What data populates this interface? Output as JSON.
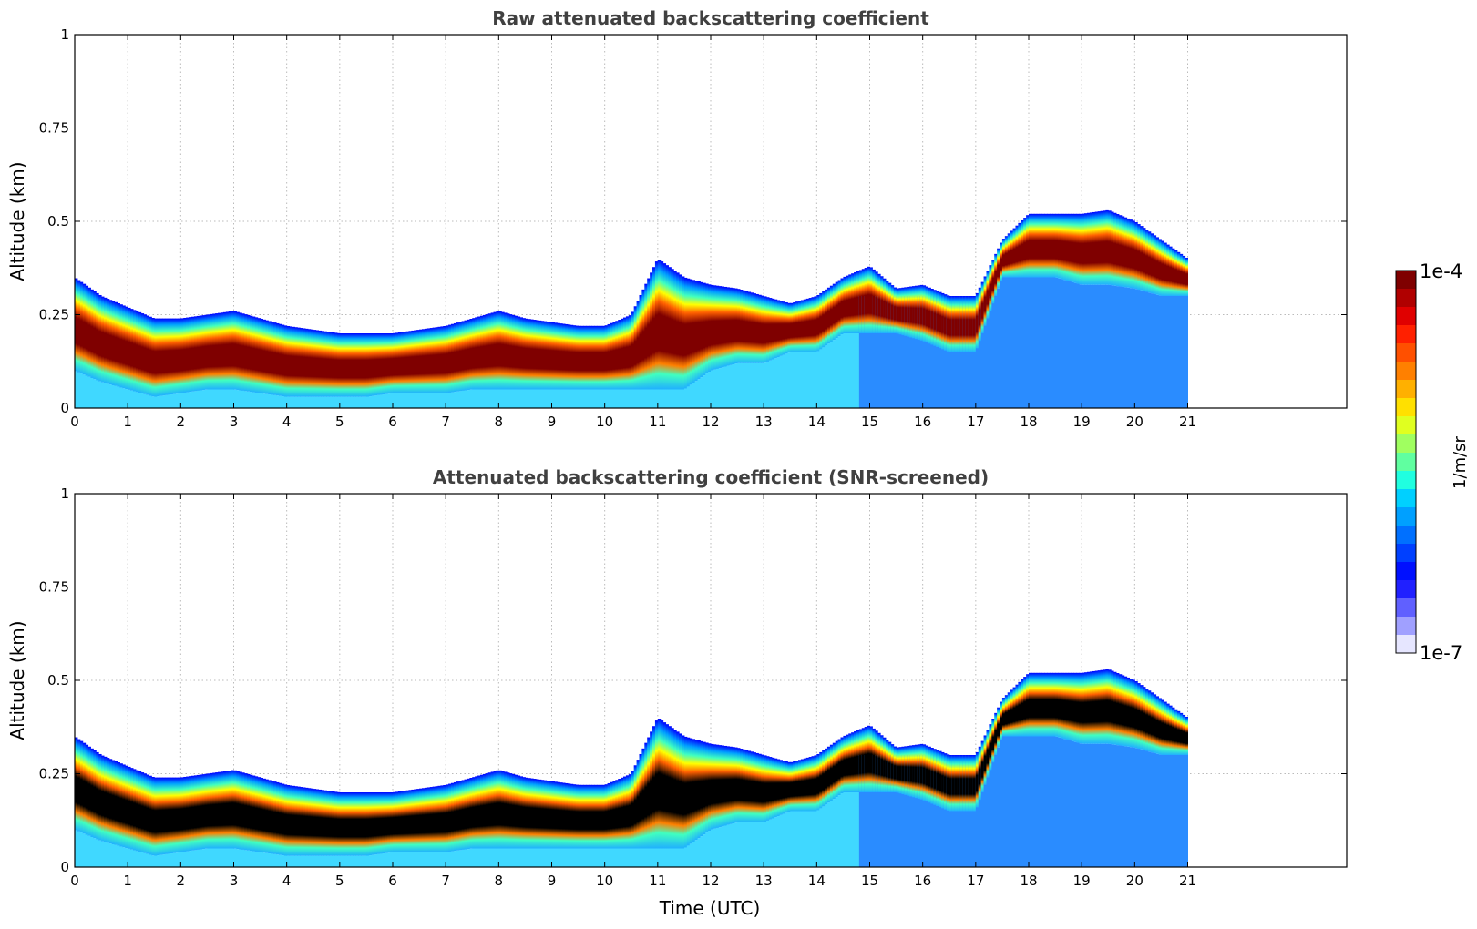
{
  "chart_data": [
    {
      "type": "heatmap",
      "title": "Raw attenuated backscattering coefficient",
      "xlabel": "",
      "ylabel": "Altitude (km)",
      "xlim": [
        0,
        24
      ],
      "ylim": [
        0,
        1
      ],
      "x_ticks": [
        0,
        1,
        2,
        3,
        4,
        5,
        6,
        7,
        8,
        9,
        10,
        11,
        12,
        13,
        14,
        15,
        16,
        17,
        18,
        19,
        20,
        21
      ],
      "x_tick_labels": [
        "0",
        "1",
        "2",
        "3",
        "4",
        "5",
        "6",
        "7",
        "8",
        "9",
        "10",
        "11",
        "12",
        "13",
        "14",
        "15",
        "16",
        "17",
        "18",
        "19",
        "20",
        "21"
      ],
      "y_ticks": [
        0,
        0.25,
        0.5,
        0.75,
        1
      ],
      "y_tick_labels": [
        "0",
        "0.25",
        "0.5",
        "0.75",
        "1"
      ],
      "grid": true,
      "data_x_range": [
        0,
        21
      ],
      "layer_profile": {
        "x": [
          0,
          0.5,
          1,
          1.5,
          2,
          2.5,
          3,
          3.5,
          4,
          4.5,
          5,
          5.5,
          6,
          6.5,
          7,
          7.5,
          8,
          8.5,
          9,
          9.5,
          10,
          10.5,
          11,
          11.5,
          12,
          12.5,
          13,
          13.5,
          14,
          14.5,
          15,
          15.5,
          16,
          16.5,
          17,
          17.5,
          18,
          18.5,
          19,
          19.5,
          20,
          20.5,
          21
        ],
        "layer_top_km": [
          0.35,
          0.3,
          0.27,
          0.24,
          0.24,
          0.25,
          0.26,
          0.24,
          0.22,
          0.21,
          0.2,
          0.2,
          0.2,
          0.21,
          0.22,
          0.24,
          0.26,
          0.24,
          0.23,
          0.22,
          0.22,
          0.25,
          0.4,
          0.35,
          0.33,
          0.32,
          0.3,
          0.28,
          0.3,
          0.35,
          0.38,
          0.32,
          0.33,
          0.3,
          0.3,
          0.45,
          0.52,
          0.52,
          0.52,
          0.53,
          0.5,
          0.45,
          0.4
        ],
        "layer_bottom_km": [
          0.1,
          0.07,
          0.05,
          0.03,
          0.04,
          0.05,
          0.05,
          0.04,
          0.03,
          0.03,
          0.03,
          0.03,
          0.04,
          0.04,
          0.04,
          0.05,
          0.05,
          0.05,
          0.05,
          0.05,
          0.05,
          0.05,
          0.05,
          0.05,
          0.1,
          0.12,
          0.12,
          0.15,
          0.15,
          0.2,
          0.2,
          0.2,
          0.18,
          0.15,
          0.15,
          0.35,
          0.35,
          0.35,
          0.33,
          0.33,
          0.32,
          0.3,
          0.3
        ]
      },
      "colorbar": {
        "min": "1e-7",
        "max": "1e-4",
        "label": "1/m/sr",
        "colormap": "jet"
      }
    },
    {
      "type": "heatmap",
      "title": "Attenuated backscattering coefficient (SNR-screened)",
      "xlabel": "Time (UTC)",
      "ylabel": "Altitude (km)",
      "xlim": [
        0,
        24
      ],
      "ylim": [
        0,
        1
      ],
      "x_ticks": [
        0,
        1,
        2,
        3,
        4,
        5,
        6,
        7,
        8,
        9,
        10,
        11,
        12,
        13,
        14,
        15,
        16,
        17,
        18,
        19,
        20,
        21
      ],
      "x_tick_labels": [
        "0",
        "1",
        "2",
        "3",
        "4",
        "5",
        "6",
        "7",
        "8",
        "9",
        "10",
        "11",
        "12",
        "13",
        "14",
        "15",
        "16",
        "17",
        "18",
        "19",
        "20",
        "21"
      ],
      "y_ticks": [
        0,
        0.25,
        0.5,
        0.75,
        1
      ],
      "y_tick_labels": [
        "0",
        "0.25",
        "0.5",
        "0.75",
        "1"
      ],
      "grid": true,
      "data_x_range": [
        0,
        21
      ],
      "saturated_color": "#000000",
      "colorbar": {
        "min": "1e-7",
        "max": "1e-4",
        "label": "1/m/sr",
        "colormap": "jet"
      }
    }
  ],
  "colors": {
    "background": "#ffffff",
    "title": "#404040",
    "grid": "#bbbbbb",
    "saturated_top": "#7f0000",
    "saturated_bottom": "#000000",
    "boundary_layer_top": "#0000ff",
    "aerosol_low": "#2a8cff"
  }
}
